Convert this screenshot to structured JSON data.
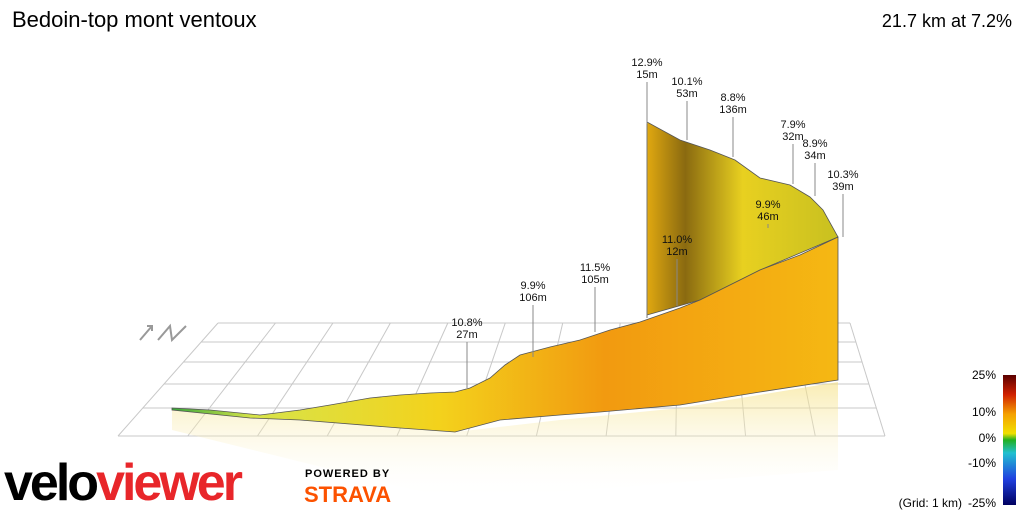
{
  "header": {
    "title": "Bedoin-top mont ventoux",
    "summary": "21.7 km at 7.2%"
  },
  "annotations": [
    {
      "gradient": "10.8%",
      "length": "27m"
    },
    {
      "gradient": "9.9%",
      "length": "106m"
    },
    {
      "gradient": "11.5%",
      "length": "105m"
    },
    {
      "gradient": "11.0%",
      "length": "12m"
    },
    {
      "gradient": "12.9%",
      "length": "15m"
    },
    {
      "gradient": "10.1%",
      "length": "53m"
    },
    {
      "gradient": "8.8%",
      "length": "136m"
    },
    {
      "gradient": "9.9%",
      "length": "46m"
    },
    {
      "gradient": "7.9%",
      "length": "32m"
    },
    {
      "gradient": "8.9%",
      "length": "34m"
    },
    {
      "gradient": "10.3%",
      "length": "39m"
    }
  ],
  "legend": {
    "labels": [
      "25%",
      "10%",
      "0%",
      "-10%",
      "-25%"
    ],
    "grid_note": "(Grid: 1 km)"
  },
  "branding": {
    "logo_start": "velo",
    "logo_end": "viewer",
    "powered_by": "POWERED BY",
    "partner": "STRAVA"
  }
}
